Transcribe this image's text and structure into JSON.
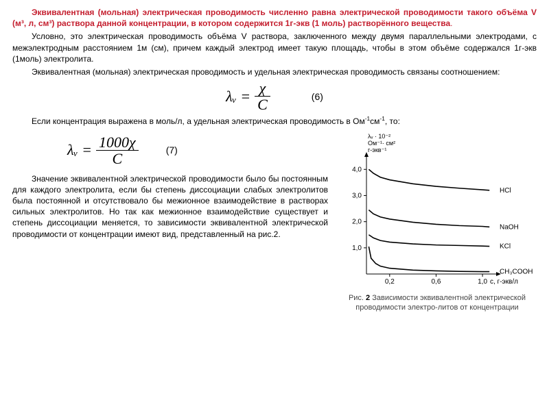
{
  "title_bold": "Эквивалентная (мольная) электрическая проводимость численно равна электрической проводимости такого объёма V (м³, л, см³) раствора данной концентрации, в котором содержится 1г-экв (1 моль) растворённого вещества",
  "p2": "Условно, это электрическая проводимость объёма V раствора, заключенного между двумя параллельными электродами, с межэлектродным расстоянием 1м (см), причем каждый электрод имеет такую площадь, чтобы в этом объёме содержался 1г-экв (1моль) электролита.",
  "p3": "Эквивалентная (мольная) электрическая проводимость и удельная электрическая проводимость связаны соотношением:",
  "eq6": {
    "lhs": "λᵥ =",
    "num": "χ",
    "den": "C",
    "n": "(6)"
  },
  "p4a": "Если концентрация выражена в моль/л, а удельная электрическая проводимость в Ом",
  "p4b": "см",
  "p4c": ", то:",
  "eq7": {
    "lhs": "λᵥ =",
    "num": "1000χ",
    "den": "C",
    "n": "(7)"
  },
  "p5": "Значение эквивалентной электрической проводимости было бы постоянным для каждого электролита, если бы степень диссоциации слабых электролитов была постоянной и отсутствовало бы межионное взаимодействие в растворах сильных электролитов. Но так как межионное взаимодействие существует и степень диссоциации меняется, то зависимости эквивалентной электрической проводимости от концентрации имеют вид, представленный на рис.2.",
  "chart": {
    "ylabel_lines": [
      "λᵥ · 10⁻²",
      "Ом⁻¹· см²",
      "г-экв⁻¹"
    ],
    "xlabel": "с, г-экв/л",
    "yticks": [
      1.0,
      2.0,
      3.0,
      4.0
    ],
    "xticks": [
      0.2,
      0.6,
      1.0
    ],
    "xlim": [
      0,
      1.1
    ],
    "ylim": [
      0,
      4.4
    ],
    "axis_color": "#000000",
    "line_color": "#000000",
    "font_size": 10,
    "series": {
      "HCl": [
        [
          0.02,
          4.0
        ],
        [
          0.06,
          3.85
        ],
        [
          0.12,
          3.7
        ],
        [
          0.2,
          3.6
        ],
        [
          0.4,
          3.45
        ],
        [
          0.6,
          3.35
        ],
        [
          0.8,
          3.28
        ],
        [
          1.0,
          3.22
        ],
        [
          1.06,
          3.2
        ]
      ],
      "NaOH": [
        [
          0.02,
          2.45
        ],
        [
          0.06,
          2.3
        ],
        [
          0.12,
          2.18
        ],
        [
          0.2,
          2.1
        ],
        [
          0.4,
          1.98
        ],
        [
          0.6,
          1.9
        ],
        [
          0.8,
          1.85
        ],
        [
          1.0,
          1.82
        ],
        [
          1.06,
          1.8
        ]
      ],
      "KCl": [
        [
          0.02,
          1.5
        ],
        [
          0.06,
          1.38
        ],
        [
          0.12,
          1.28
        ],
        [
          0.2,
          1.22
        ],
        [
          0.4,
          1.15
        ],
        [
          0.6,
          1.11
        ],
        [
          0.8,
          1.09
        ],
        [
          1.0,
          1.07
        ],
        [
          1.06,
          1.06
        ]
      ],
      "CH₃COOH": [
        [
          0.02,
          1.05
        ],
        [
          0.04,
          0.6
        ],
        [
          0.08,
          0.4
        ],
        [
          0.12,
          0.3
        ],
        [
          0.2,
          0.22
        ],
        [
          0.4,
          0.15
        ],
        [
          0.6,
          0.12
        ],
        [
          0.8,
          0.1
        ],
        [
          1.0,
          0.09
        ],
        [
          1.06,
          0.09
        ]
      ]
    },
    "legend": [
      "HCl",
      "NaOH",
      "KCl",
      "CH₃COOH"
    ]
  },
  "caption_a": "Рис. ",
  "caption_num": "2",
  "caption_b": " Зависимости эквивалентной электрической проводимости электро-литов от концентрации"
}
